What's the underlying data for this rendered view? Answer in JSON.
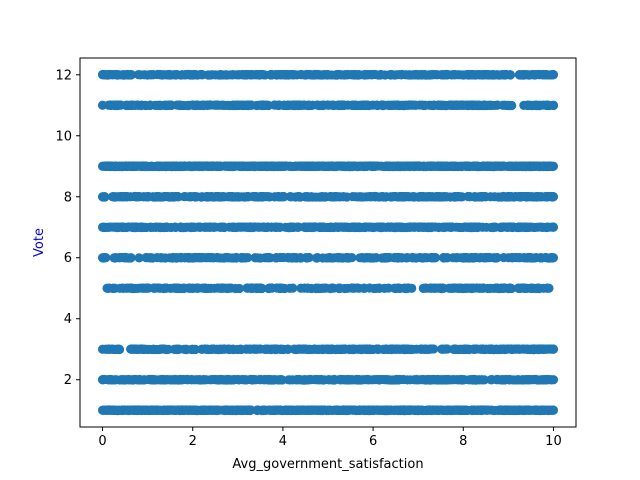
{
  "chart_data": {
    "type": "scatter",
    "title": "",
    "xlabel": "Avg_government_satisfaction",
    "ylabel": "Vote",
    "xlim": [
      -0.5,
      10.5
    ],
    "ylim": [
      0.45,
      12.55
    ],
    "xticks": [
      0,
      2,
      4,
      6,
      8,
      10
    ],
    "yticks": [
      2,
      4,
      6,
      8,
      10,
      12
    ],
    "grid": false,
    "legend": "none",
    "series": [
      {
        "color": "#1f77b4",
        "bands": [
          {
            "y": 1,
            "x_range": [
              0,
              10
            ],
            "density": "very-high"
          },
          {
            "y": 2,
            "x_range": [
              0,
              10
            ],
            "density": "high"
          },
          {
            "y": 3,
            "x_range": [
              0,
              10
            ],
            "density": "high"
          },
          {
            "y": 5,
            "x_range": [
              0.1,
              9.9
            ],
            "density": "medium",
            "gaps": [
              4.1
            ]
          },
          {
            "y": 6,
            "x_range": [
              0,
              10
            ],
            "density": "medium"
          },
          {
            "y": 7,
            "x_range": [
              0,
              10
            ],
            "density": "high"
          },
          {
            "y": 8,
            "x_range": [
              0,
              10
            ],
            "density": "high"
          },
          {
            "y": 9,
            "x_range": [
              0,
              10
            ],
            "density": "very-high"
          },
          {
            "y": 11,
            "x_range": [
              0,
              10
            ],
            "density": "high"
          },
          {
            "y": 12,
            "x_range": [
              0,
              10
            ],
            "density": "high"
          }
        ]
      }
    ]
  }
}
